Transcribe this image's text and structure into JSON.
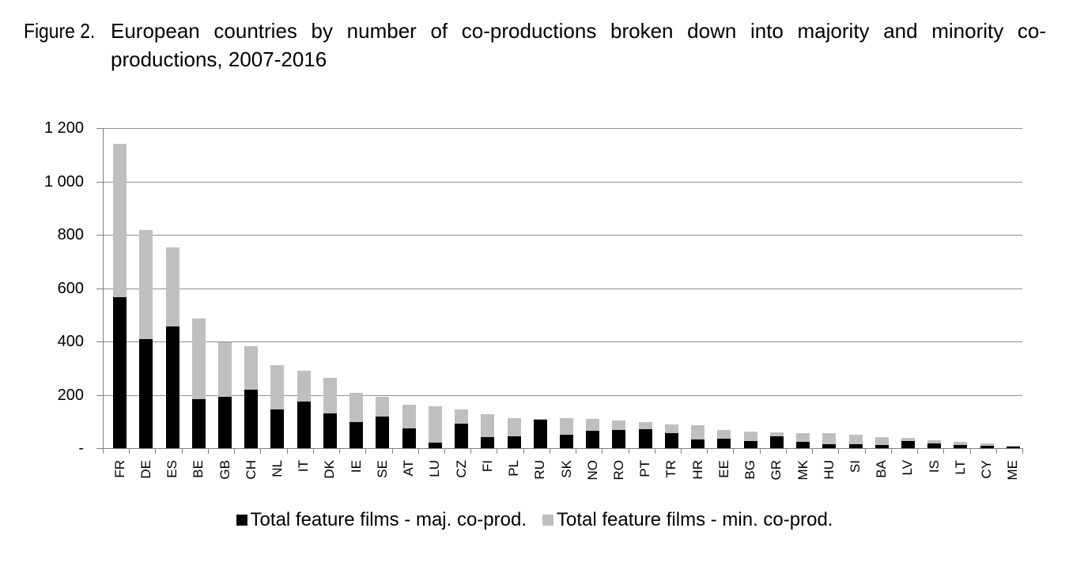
{
  "title": {
    "figure_label": "Figure 2.",
    "line1": "European countries by number of co-productions broken down into majority and minority co-",
    "line2": "productions, 2007-2016"
  },
  "legend": {
    "majority": "Total feature films - maj. co-prod.",
    "minority": "Total feature films - min. co-prod."
  },
  "colors": {
    "majority": "#000000",
    "minority": "#bfbfbf",
    "gridline": "#909090",
    "axis": "#808080"
  },
  "chart_data": {
    "type": "bar",
    "stacked": true,
    "title": "European countries by number of co-productions broken down into majority and minority co-productions, 2007-2016",
    "categories": [
      "FR",
      "DE",
      "ES",
      "BE",
      "GB",
      "CH",
      "NL",
      "IT",
      "DK",
      "IE",
      "SE",
      "AT",
      "LU",
      "CZ",
      "FI",
      "PL",
      "RU",
      "SK",
      "NO",
      "RO",
      "PT",
      "TR",
      "HR",
      "EE",
      "BG",
      "GR",
      "MK",
      "HU",
      "SI",
      "BA",
      "LV",
      "IS",
      "LT",
      "CY",
      "ME"
    ],
    "series": [
      {
        "name": "Total feature films - maj. co-prod.",
        "color": "#000000",
        "values": [
          565,
          410,
          457,
          184,
          192,
          218,
          144,
          174,
          131,
          98,
          119,
          75,
          21,
          92,
          41,
          45,
          109,
          50,
          65,
          67,
          70,
          55,
          33,
          35,
          26,
          45,
          24,
          16,
          16,
          13,
          26,
          19,
          13,
          8,
          9
        ]
      },
      {
        "name": "Total feature films - min. co-prod.",
        "color": "#bfbfbf",
        "values": [
          575,
          408,
          296,
          301,
          206,
          163,
          168,
          115,
          134,
          108,
          74,
          89,
          136,
          52,
          86,
          68,
          2,
          62,
          45,
          38,
          28,
          35,
          52,
          32,
          36,
          15,
          33,
          39,
          34,
          29,
          12,
          10,
          10,
          11,
          1
        ]
      }
    ],
    "ylim": [
      0,
      1200
    ],
    "y_tick_interval": 200,
    "y_tick_labels": [
      "-",
      "200",
      "400",
      "600",
      "800",
      "1 000",
      "1 200"
    ],
    "grid": true,
    "legend_position": "bottom"
  }
}
